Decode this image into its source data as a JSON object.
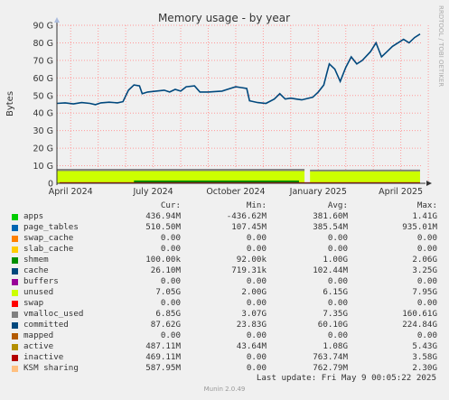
{
  "chart_data": {
    "type": "line",
    "title": "Memory usage - by year",
    "ylabel": "Bytes",
    "side_label": "RRDTOOL / TOBI OETIKER",
    "ylim": [
      0,
      90
    ],
    "yticks": [
      "0",
      "10 G",
      "20 G",
      "30 G",
      "40 G",
      "50 G",
      "60 G",
      "70 G",
      "80 G",
      "90 G"
    ],
    "xticks": [
      "April 2024",
      "July 2024",
      "October 2024",
      "January 2025",
      "April 2025"
    ],
    "grid": true,
    "x_months_span": [
      0,
      13.3
    ],
    "xtick_months": [
      0.5,
      3.5,
      6.5,
      9.5,
      12.5
    ],
    "committed_series": [
      [
        0,
        45.5
      ],
      [
        0.3,
        45.8
      ],
      [
        0.6,
        45.2
      ],
      [
        0.9,
        46
      ],
      [
        1.2,
        45.5
      ],
      [
        1.4,
        44.8
      ],
      [
        1.6,
        45.8
      ],
      [
        1.9,
        46.2
      ],
      [
        2.2,
        45.8
      ],
      [
        2.4,
        46.5
      ],
      [
        2.6,
        53
      ],
      [
        2.8,
        56
      ],
      [
        3.0,
        55.5
      ],
      [
        3.1,
        51
      ],
      [
        3.3,
        52
      ],
      [
        3.6,
        52.5
      ],
      [
        3.9,
        53
      ],
      [
        4.1,
        52
      ],
      [
        4.3,
        53.5
      ],
      [
        4.5,
        52.5
      ],
      [
        4.7,
        55
      ],
      [
        5.0,
        55.5
      ],
      [
        5.2,
        52
      ],
      [
        5.5,
        52
      ],
      [
        5.8,
        52.3
      ],
      [
        6.0,
        52.5
      ],
      [
        6.3,
        54
      ],
      [
        6.5,
        55
      ],
      [
        6.7,
        54.5
      ],
      [
        6.9,
        54
      ],
      [
        7.0,
        47
      ],
      [
        7.3,
        46
      ],
      [
        7.6,
        45.5
      ],
      [
        7.9,
        48
      ],
      [
        8.1,
        51
      ],
      [
        8.3,
        48
      ],
      [
        8.5,
        48.5
      ],
      [
        8.7,
        48
      ],
      [
        8.9,
        47.5
      ],
      [
        9.3,
        49
      ],
      [
        9.5,
        52
      ],
      [
        9.7,
        56
      ],
      [
        9.8,
        62
      ],
      [
        9.9,
        68
      ],
      [
        10.1,
        65
      ],
      [
        10.3,
        58
      ],
      [
        10.5,
        66
      ],
      [
        10.7,
        72
      ],
      [
        10.9,
        68
      ],
      [
        11.1,
        70
      ],
      [
        11.4,
        75
      ],
      [
        11.6,
        80
      ],
      [
        11.8,
        72
      ],
      [
        12.0,
        75
      ],
      [
        12.2,
        78
      ],
      [
        12.4,
        80
      ],
      [
        12.6,
        82
      ],
      [
        12.8,
        80
      ],
      [
        13.0,
        83
      ],
      [
        13.2,
        85
      ]
    ],
    "series": [
      {
        "name": "apps",
        "color": "#00cc00"
      },
      {
        "name": "page_tables",
        "color": "#0066b3"
      },
      {
        "name": "swap_cache",
        "color": "#ff8000"
      },
      {
        "name": "slab_cache",
        "color": "#ffcc00"
      },
      {
        "name": "shmem",
        "color": "#330099"
      },
      {
        "name": "cache",
        "color": "#990099"
      },
      {
        "name": "buffers",
        "color": "#ccff00"
      },
      {
        "name": "unused",
        "color": "#ff0000"
      },
      {
        "name": "swap",
        "color": "#808080"
      },
      {
        "name": "vmalloc_used",
        "color": "#008f00"
      },
      {
        "name": "committed",
        "color": "#00487d"
      },
      {
        "name": "mapped",
        "color": "#b35a00"
      },
      {
        "name": "active",
        "color": "#b38f00"
      },
      {
        "name": "inactive",
        "color": "#6b006b"
      },
      {
        "name": "KSM sharing",
        "color": "#8fb300"
      }
    ]
  },
  "legend": {
    "headers": {
      "cur": "Cur:",
      "min": "Min:",
      "avg": "Avg:",
      "max": "Max:"
    },
    "rows": [
      {
        "name": "apps",
        "color": "#00cc00",
        "cur": "436.94M",
        "min": "-436.62M",
        "avg": "381.60M",
        "max": "1.41G"
      },
      {
        "name": "page_tables",
        "color": "#0066b3",
        "cur": "510.50M",
        "min": "107.45M",
        "avg": "385.54M",
        "max": "935.01M"
      },
      {
        "name": "swap_cache",
        "color": "#ff8000",
        "cur": "0.00",
        "min": "0.00",
        "avg": "0.00",
        "max": "0.00"
      },
      {
        "name": "slab_cache",
        "color": "#ffcc00",
        "cur": "0.00",
        "min": "0.00",
        "avg": "0.00",
        "max": "0.00"
      },
      {
        "name": "shmem",
        "color": "#008f00",
        "cur": "100.00k",
        "min": "92.00k",
        "avg": "1.00G",
        "max": "2.06G"
      },
      {
        "name": "cache",
        "color": "#00487d",
        "cur": "26.10M",
        "min": "719.31k",
        "avg": "102.44M",
        "max": "3.25G"
      },
      {
        "name": "buffers",
        "color": "#990099",
        "cur": "0.00",
        "min": "0.00",
        "avg": "0.00",
        "max": "0.00"
      },
      {
        "name": "unused",
        "color": "#ccff00",
        "cur": "7.05G",
        "min": "2.00G",
        "avg": "6.15G",
        "max": "7.95G"
      },
      {
        "name": "swap",
        "color": "#ff0000",
        "cur": "0.00",
        "min": "0.00",
        "avg": "0.00",
        "max": "0.00"
      },
      {
        "name": "vmalloc_used",
        "color": "#808080",
        "cur": "6.85G",
        "min": "3.07G",
        "avg": "7.35G",
        "max": "160.61G"
      },
      {
        "name": "committed",
        "color": "#00487d",
        "cur": "87.62G",
        "min": "23.83G",
        "avg": "60.10G",
        "max": "224.84G"
      },
      {
        "name": "mapped",
        "color": "#b35a00",
        "cur": "0.00",
        "min": "0.00",
        "avg": "0.00",
        "max": "0.00"
      },
      {
        "name": "active",
        "color": "#b38f00",
        "cur": "487.11M",
        "min": "43.64M",
        "avg": "1.08G",
        "max": "5.43G"
      },
      {
        "name": "inactive",
        "color": "#b30000",
        "cur": "469.11M",
        "min": "0.00",
        "avg": "763.74M",
        "max": "3.58G"
      },
      {
        "name": "KSM sharing",
        "color": "#ffc080",
        "cur": "587.95M",
        "min": "0.00",
        "avg": "762.79M",
        "max": "2.30G"
      }
    ],
    "last_update": "Last update:  Fri May  9 00:05:22 2025"
  },
  "footer": {
    "munin": "Munin 2.0.49"
  }
}
